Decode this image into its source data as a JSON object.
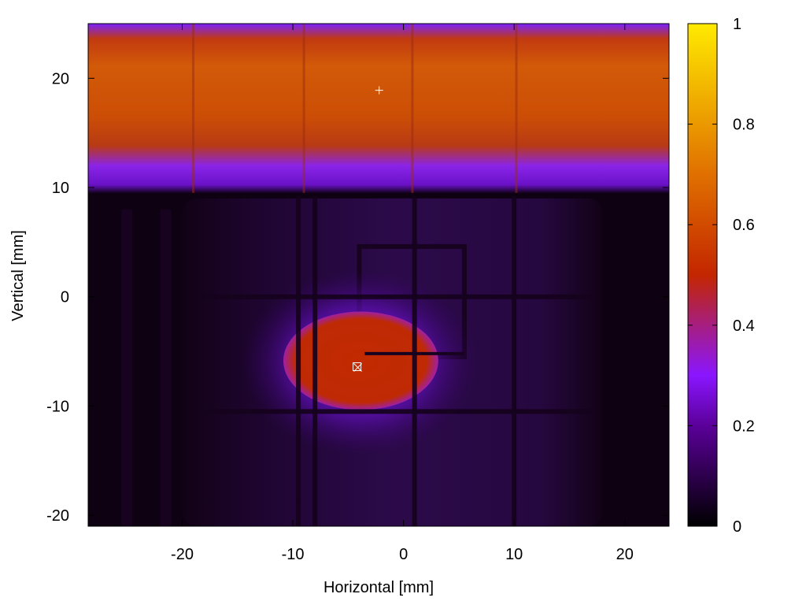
{
  "chart_data": {
    "type": "heatmap",
    "title": "",
    "xlabel": "Horizontal [mm]",
    "ylabel": "Vertical [mm]",
    "xlim": [
      -28.5,
      24
    ],
    "ylim": [
      -21,
      25
    ],
    "x_ticks": [
      -20,
      -10,
      0,
      10,
      20
    ],
    "x_tick_labels": [
      "-20",
      "-10",
      "0",
      "10",
      "20"
    ],
    "y_ticks": [
      -20,
      -10,
      0,
      10,
      20
    ],
    "y_tick_labels": [
      "-20",
      "-10",
      "0",
      "10",
      "20"
    ],
    "colorbar": {
      "range": [
        0,
        1
      ],
      "ticks": [
        0,
        0.2,
        0.4,
        0.6,
        0.8,
        1
      ],
      "tick_labels": [
        "0",
        "0.2",
        "0.4",
        "0.6",
        "0.8",
        "1"
      ],
      "colors": [
        "#000000",
        "#5a0099",
        "#8a16ff",
        "#c32600",
        "#e07000",
        "#ffea00"
      ]
    },
    "regions": [
      {
        "desc": "bright horizontal band",
        "x": [
          -28.5,
          24
        ],
        "y": [
          9.5,
          25
        ],
        "value": 0.6
      },
      {
        "desc": "central hot spot",
        "x": [
          -11,
          3
        ],
        "y": [
          -10.5,
          -1.5
        ],
        "value": 0.58
      },
      {
        "desc": "dim grid background",
        "x": [
          -20,
          18
        ],
        "y": [
          -21,
          9
        ],
        "value": 0.1
      }
    ],
    "grid_lines": {
      "x": [
        -9.5,
        -8,
        1,
        10
      ],
      "y": [
        0,
        -10.5
      ]
    },
    "markers": [
      {
        "symbol": "+",
        "x": -2.2,
        "y": 18.9
      },
      {
        "symbol": "square-x",
        "x": -4.2,
        "y": -6.4
      }
    ]
  }
}
